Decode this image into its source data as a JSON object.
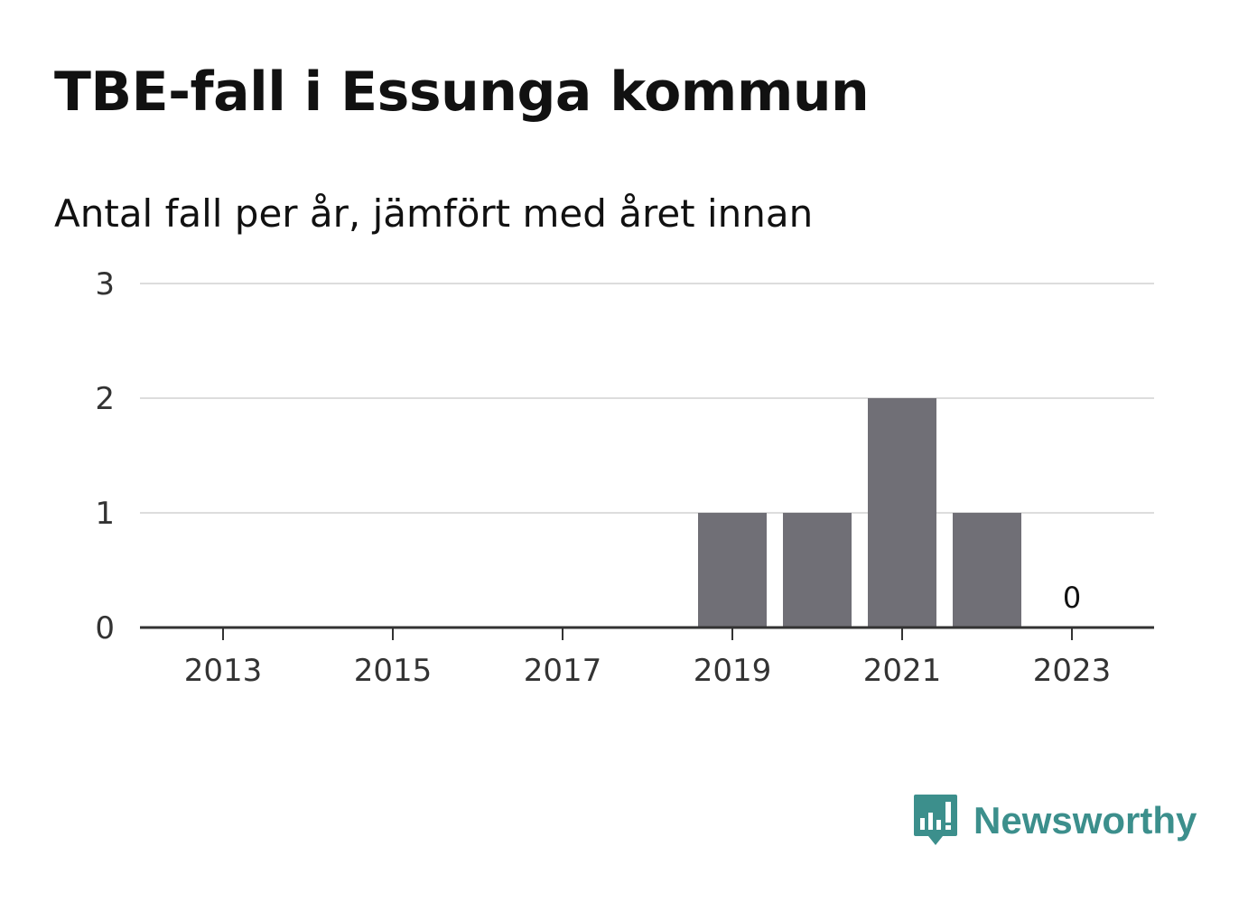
{
  "header": {
    "title": "TBE-fall i Essunga kommun",
    "subtitle": "Antal fall per år, jämfört med året innan"
  },
  "chart_data": {
    "type": "bar",
    "categories": [
      "2013",
      "2014",
      "2015",
      "2016",
      "2017",
      "2018",
      "2019",
      "2020",
      "2021",
      "2022",
      "2023"
    ],
    "x_tick_labels": [
      "2013",
      "2015",
      "2017",
      "2019",
      "2021",
      "2023"
    ],
    "values": [
      0,
      0,
      0,
      0,
      0,
      0,
      1,
      1,
      2,
      1,
      0
    ],
    "data_labels": [
      {
        "category": "2023",
        "text": "0"
      }
    ],
    "ylim": [
      0,
      3
    ],
    "y_ticks": [
      0,
      1,
      2,
      3
    ],
    "grid": true,
    "bar_color": "#706f76"
  },
  "brand": {
    "name": "Newsworthy",
    "icon": "newsworthy-logo-icon",
    "color": "#3c8f8c"
  }
}
